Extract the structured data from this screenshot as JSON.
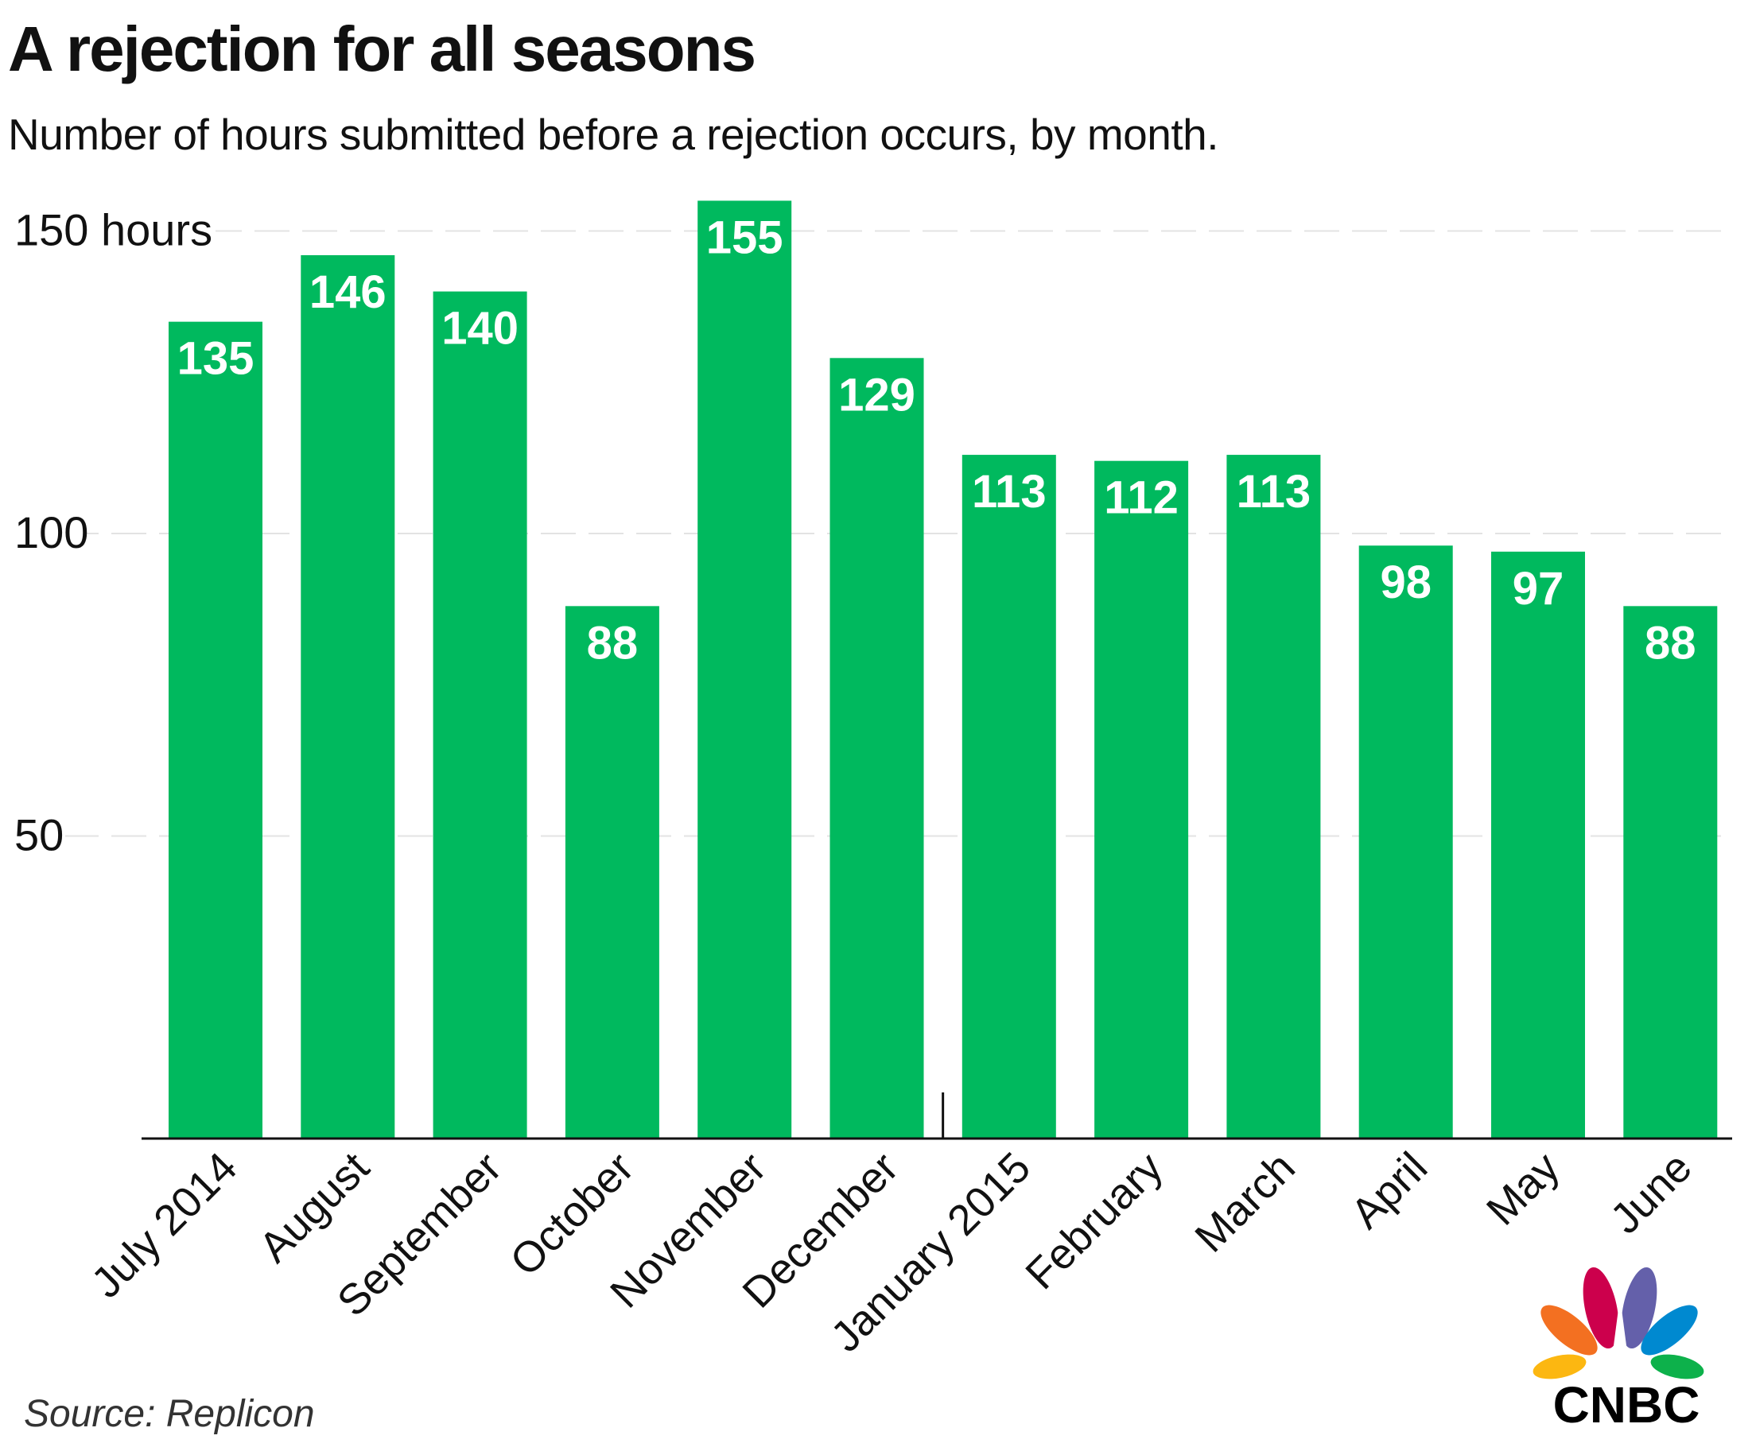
{
  "title": "A rejection for all seasons",
  "subtitle": "Number of hours submitted before a rejection occurs, by month.",
  "source": "Source: Replicon",
  "logo_text": "CNBC",
  "colors": {
    "bar": "#00b95e",
    "bar_label": "#ffffff",
    "grid": "#e3e3e3",
    "axis": "#111111"
  },
  "chart_data": {
    "type": "bar",
    "title": "A rejection for all seasons",
    "subtitle": "Number of hours submitted before a rejection occurs, by month.",
    "xlabel": "",
    "ylabel": "",
    "unit": "hours",
    "categories": [
      "July 2014",
      "August",
      "September",
      "October",
      "November",
      "December",
      "January 2015",
      "February",
      "March",
      "April",
      "May",
      "June"
    ],
    "values": [
      135,
      146,
      140,
      88,
      155,
      129,
      113,
      112,
      113,
      98,
      97,
      88
    ],
    "y_ticks": [
      {
        "value": 50,
        "label": "50"
      },
      {
        "value": 100,
        "label": "100"
      },
      {
        "value": 150,
        "label": "150 hours"
      }
    ],
    "ylim": [
      0,
      155
    ],
    "grid": true,
    "data_labels": true
  }
}
